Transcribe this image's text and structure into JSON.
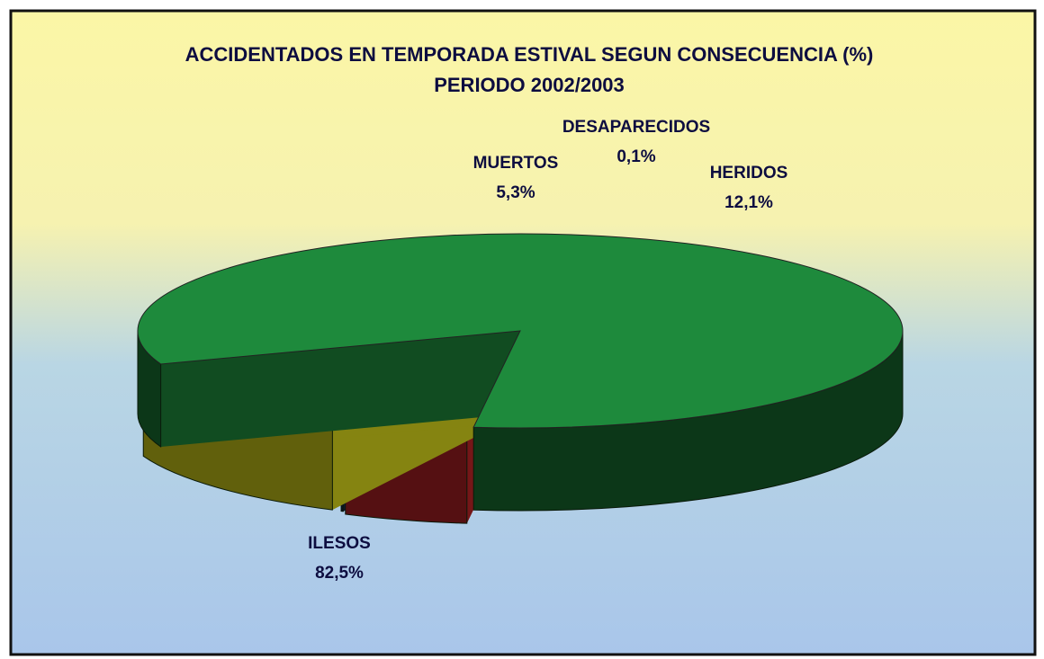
{
  "chart_data": {
    "type": "pie",
    "title": "ACCIDENTADOS EN TEMPORADA ESTIVAL SEGUN CONSECUENCIA (%)",
    "subtitle": "PERIODO 2002/2003",
    "categories": [
      "ILESOS",
      "MUERTOS",
      "DESAPARECIDOS",
      "HERIDOS"
    ],
    "values": [
      82.5,
      5.3,
      0.1,
      12.1
    ],
    "value_labels": [
      "82,5%",
      "5,3%",
      "0,1%",
      "12,1%"
    ],
    "colors": [
      "#1e8a3c",
      "#d4282c",
      "#1c2a5a",
      "#f2f01e"
    ]
  }
}
